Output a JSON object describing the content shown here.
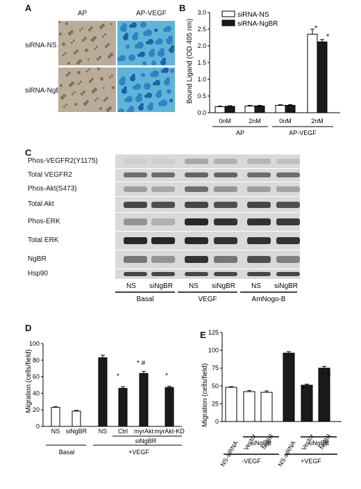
{
  "panels": {
    "A": {
      "letter": "A",
      "col_labels": [
        "AP",
        "AP-VEGF"
      ],
      "row_labels": [
        "siRNA-NS",
        "siRNA-NgBR"
      ]
    },
    "B": {
      "letter": "B",
      "legend": [
        "siRNA-NS",
        "siRNA-NgBR"
      ],
      "ylabel": "Bound Ligand (OD 405 nm)",
      "yticks": [
        "0.0",
        "0.5",
        "1.0",
        "1.5",
        "2.0",
        "2.5",
        "3.0"
      ],
      "xticks": [
        "0nM",
        "2nM",
        "0nM",
        "2nM"
      ],
      "groups": [
        "AP",
        "AP-VEGF"
      ],
      "stars": [
        "*",
        "*"
      ]
    },
    "C": {
      "letter": "C",
      "blot_labels": [
        "Phos-VEGFR2(Y1175)",
        "Total VEGFR2",
        "Phos-Akt(S473)",
        "Total Akt",
        "Phos-ERK",
        "Total ERK",
        "NgBR",
        "Hsp90"
      ],
      "lane_labels": [
        "NS",
        "siNgBR",
        "NS",
        "siNgBR",
        "NS",
        "siNgBR"
      ],
      "group_labels": [
        "Basal",
        "VEGF",
        "AmNogo-B"
      ]
    },
    "D": {
      "letter": "D",
      "ylabel": "Migration (cells/field)",
      "yticks": [
        "0",
        "20",
        "40",
        "60",
        "80",
        "100"
      ],
      "xticks": [
        "NS",
        "siNgBR",
        "NS",
        "Ctrl",
        "myrAkt",
        "myrAkt-KD"
      ],
      "sub_label": "siNgBR",
      "group_labels": [
        "Basal",
        "+VEGF"
      ],
      "stars": [
        "*",
        "* #",
        "*"
      ]
    },
    "E": {
      "letter": "E",
      "ylabel": "Migration (cells/field)",
      "yticks": [
        "0",
        "25",
        "50",
        "75",
        "100",
        "125"
      ],
      "xticks": [
        "NS-siRNA",
        "Vector",
        "NgBR",
        "NS-siRNA",
        "Vector",
        "NgBR"
      ],
      "sub_label": "siNgBR",
      "group_labels": [
        "-VEGF",
        "+VEGF"
      ],
      "stars": [
        "*",
        "* #"
      ]
    }
  },
  "chart_data": [
    {
      "type": "bar",
      "panel": "B",
      "categories": [
        "0nM",
        "2nM",
        "0nM",
        "2nM"
      ],
      "groups": [
        "AP",
        "AP",
        "AP-VEGF",
        "AP-VEGF"
      ],
      "series": [
        {
          "name": "siRNA-NS",
          "values": [
            0.18,
            0.2,
            0.22,
            2.35
          ],
          "errors": [
            0.02,
            0.02,
            0.02,
            0.15
          ],
          "color": "#ffffff"
        },
        {
          "name": "siRNA-NgBR",
          "values": [
            0.19,
            0.2,
            0.22,
            2.12
          ],
          "errors": [
            0.02,
            0.02,
            0.02,
            0.07
          ],
          "color": "#1a1a1a"
        }
      ],
      "ylabel": "Bound Ligand (OD 405 nm)",
      "ylim": [
        0,
        3.0
      ]
    },
    {
      "type": "bar",
      "panel": "D",
      "categories": [
        "NS",
        "siNgBR",
        "NS",
        "Ctrl",
        "myrAkt",
        "myrAkt-KD"
      ],
      "values": [
        23,
        18.5,
        83,
        46,
        64,
        47
      ],
      "errors": [
        0.8,
        0.8,
        3,
        2,
        2.5,
        1.5
      ],
      "fill": [
        "#ffffff",
        "#ffffff",
        "#1a1a1a",
        "#1a1a1a",
        "#1a1a1a",
        "#1a1a1a"
      ],
      "ylabel": "Migration (cells/field)",
      "ylim": [
        0,
        100
      ]
    },
    {
      "type": "bar",
      "panel": "E",
      "categories": [
        "NS-siRNA",
        "Vector",
        "NgBR",
        "NS-siRNA",
        "Vector",
        "NgBR"
      ],
      "values": [
        48,
        42,
        41,
        96,
        51,
        75
      ],
      "errors": [
        1,
        1.5,
        2,
        2,
        1.5,
        2.5
      ],
      "fill": [
        "#ffffff",
        "#ffffff",
        "#ffffff",
        "#1a1a1a",
        "#1a1a1a",
        "#1a1a1a"
      ],
      "ylabel": "Migration (cells/field)",
      "ylim": [
        0,
        125
      ]
    }
  ]
}
